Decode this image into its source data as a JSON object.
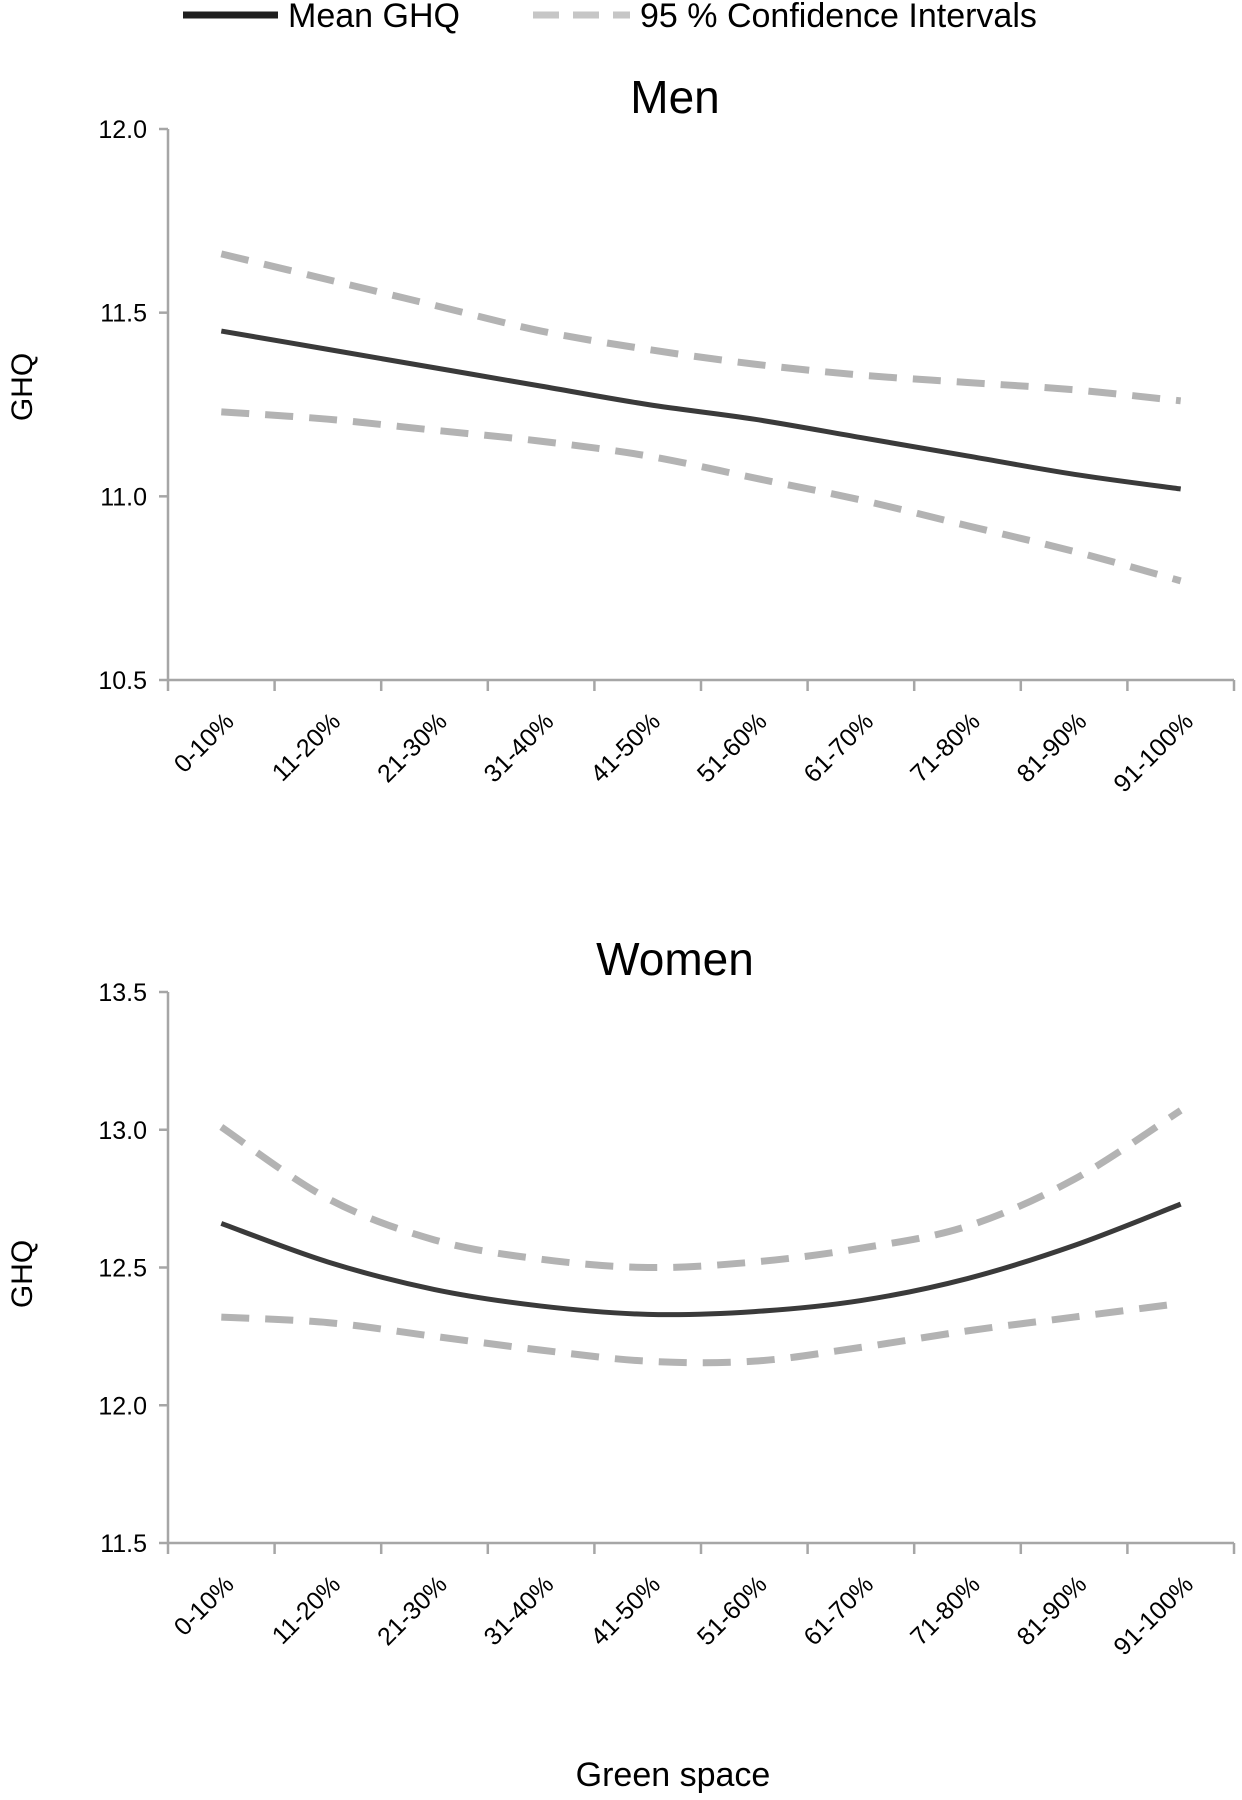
{
  "legend": {
    "mean_label": "Mean GHQ",
    "ci_label": "95 % Confidence Intervals"
  },
  "xlabel": "Green space",
  "chart_data": [
    {
      "type": "line",
      "title": "Men",
      "ylabel": "GHQ",
      "xlabel": "Green space",
      "categories": [
        "0-10%",
        "11-20%",
        "21-30%",
        "31-40%",
        "41-50%",
        "51-60%",
        "61-70%",
        "71-80%",
        "81-90%",
        "91-100%"
      ],
      "ylim": [
        10.5,
        12.0
      ],
      "yticks": [
        "10.5",
        "11.0",
        "11.5",
        "12.0"
      ],
      "grid": false,
      "legend_position": "top",
      "series": [
        {
          "name": "Mean GHQ",
          "style": "solid",
          "color": "#3a3a3a",
          "values": [
            11.45,
            11.4,
            11.35,
            11.3,
            11.25,
            11.21,
            11.16,
            11.11,
            11.06,
            11.02
          ]
        },
        {
          "name": "95 % Confidence Intervals",
          "style": "dashed",
          "color": "#b3b3b3",
          "values": [
            11.66,
            11.59,
            11.52,
            11.45,
            11.4,
            11.36,
            11.33,
            11.31,
            11.29,
            11.26
          ]
        },
        {
          "name": "95 % Confidence Intervals",
          "style": "dashed",
          "color": "#b3b3b3",
          "values": [
            11.23,
            11.21,
            11.18,
            11.15,
            11.11,
            11.05,
            10.99,
            10.92,
            10.85,
            10.77
          ]
        }
      ]
    },
    {
      "type": "line",
      "title": "Women",
      "ylabel": "GHQ",
      "xlabel": "Green space",
      "categories": [
        "0-10%",
        "11-20%",
        "21-30%",
        "31-40%",
        "41-50%",
        "51-60%",
        "61-70%",
        "71-80%",
        "81-90%",
        "91-100%"
      ],
      "ylim": [
        11.5,
        13.5
      ],
      "yticks": [
        "11.5",
        "12.0",
        "12.5",
        "13.0",
        "13.5"
      ],
      "grid": false,
      "legend_position": "top",
      "series": [
        {
          "name": "Mean GHQ",
          "style": "solid",
          "color": "#3a3a3a",
          "values": [
            12.66,
            12.52,
            12.42,
            12.36,
            12.33,
            12.34,
            12.38,
            12.46,
            12.58,
            12.73
          ]
        },
        {
          "name": "95 % Confidence Intervals",
          "style": "dashed",
          "color": "#b3b3b3",
          "values": [
            13.01,
            12.75,
            12.6,
            12.53,
            12.5,
            12.52,
            12.57,
            12.65,
            12.82,
            13.07
          ]
        },
        {
          "name": "95 % Confidence Intervals",
          "style": "dashed",
          "color": "#b3b3b3",
          "values": [
            12.32,
            12.3,
            12.25,
            12.2,
            12.16,
            12.16,
            12.21,
            12.27,
            12.32,
            12.37
          ]
        }
      ]
    }
  ]
}
